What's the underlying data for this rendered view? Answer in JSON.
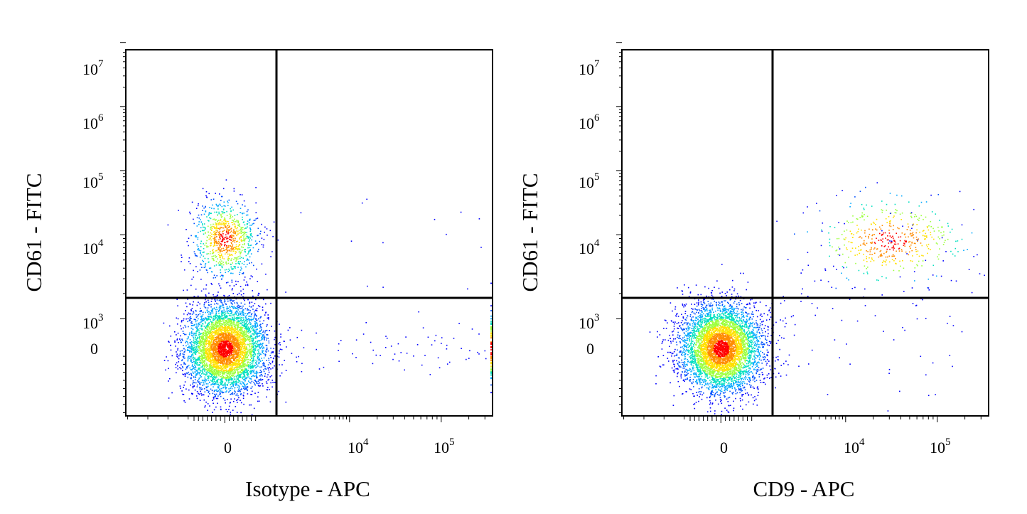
{
  "colors": {
    "frame": "#000000",
    "density_low": "#0000ff",
    "density_mid": "#00c8ff",
    "density_high": "#ffd000",
    "density_peak": "#ff0000"
  },
  "chart_data": [
    {
      "type": "scatter",
      "title": "",
      "xlabel": "Isotype - APC",
      "ylabel": "CD61 - FITC",
      "xscale": "biexponential",
      "yscale": "biexponential",
      "xticks": [
        {
          "base": "0",
          "exp": ""
        },
        {
          "base": "10",
          "exp": "4"
        },
        {
          "base": "10",
          "exp": "5"
        }
      ],
      "yticks": [
        {
          "base": "10",
          "exp": "7"
        },
        {
          "base": "10",
          "exp": "6"
        },
        {
          "base": "10",
          "exp": "5"
        },
        {
          "base": "10",
          "exp": "4"
        },
        {
          "base": "10",
          "exp": "3"
        },
        {
          "base": "0",
          "exp": ""
        }
      ],
      "x_tick_values": [
        0,
        10000,
        100000
      ],
      "y_tick_values": [
        10000000,
        1000000,
        100000,
        10000,
        1000,
        0
      ],
      "gate": {
        "x": 1500,
        "y": 2000
      },
      "populations": [
        {
          "name": "",
          "x": 0,
          "y": 9000,
          "count": 900,
          "spread_x": 0.09,
          "spread_y": 0.11,
          "peak": 0.35
        },
        {
          "name": "",
          "x": 0,
          "y": 0,
          "count": 5000,
          "spread_x": 0.11,
          "spread_y": 0.12,
          "peak": 1.0
        },
        {
          "name": "",
          "x": 20000,
          "y": 0,
          "count": 70,
          "spread_x": 0.45,
          "spread_y": 0.06,
          "peak": 0.05,
          "uniform_x": true
        },
        {
          "name": "",
          "x": 10000,
          "y": 8000,
          "count": 15,
          "spread_x": 0.6,
          "spread_y": 0.2,
          "peak": 0.05,
          "uniform_x": true
        }
      ],
      "edge_pileup": {
        "edge": "right",
        "y": 0,
        "count": 60
      }
    },
    {
      "type": "scatter",
      "title": "",
      "xlabel": "CD9 - APC",
      "ylabel": "CD61 - FITC",
      "xscale": "biexponential",
      "yscale": "biexponential",
      "xticks": [
        {
          "base": "0",
          "exp": ""
        },
        {
          "base": "10",
          "exp": "4"
        },
        {
          "base": "10",
          "exp": "5"
        }
      ],
      "yticks": [
        {
          "base": "10",
          "exp": "7"
        },
        {
          "base": "10",
          "exp": "6"
        },
        {
          "base": "10",
          "exp": "5"
        },
        {
          "base": "10",
          "exp": "4"
        },
        {
          "base": "10",
          "exp": "3"
        },
        {
          "base": "0",
          "exp": ""
        }
      ],
      "x_tick_values": [
        0,
        10000,
        100000
      ],
      "y_tick_values": [
        10000000,
        1000000,
        100000,
        10000,
        1000,
        0
      ],
      "gate": {
        "x": 1500,
        "y": 2000
      },
      "populations": [
        {
          "name": "",
          "x": 0,
          "y": 0,
          "count": 5200,
          "spread_x": 0.11,
          "spread_y": 0.12,
          "peak": 1.0
        },
        {
          "name": "",
          "x": 30000,
          "y": 8500,
          "count": 450,
          "spread_x": 0.18,
          "spread_y": 0.1,
          "peak": 0.25
        },
        {
          "name": "",
          "x": 5000,
          "y": 2000,
          "count": 120,
          "spread_x": 0.3,
          "spread_y": 0.25,
          "peak": 0.05,
          "uniform_x": true
        }
      ],
      "edge_pileup": null
    }
  ]
}
